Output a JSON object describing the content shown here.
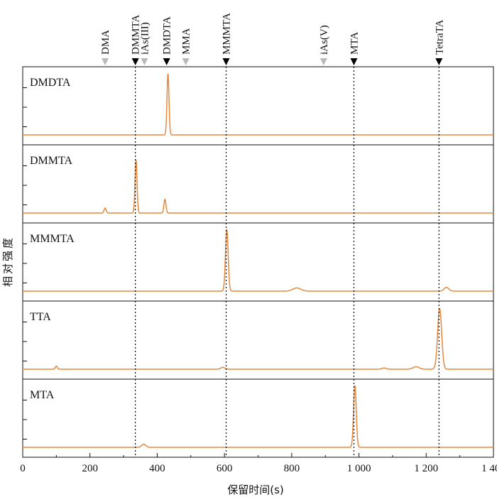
{
  "chart_data": {
    "type": "line",
    "xlabel": "保留时间(s)",
    "ylabel": "相对强度",
    "xlim": [
      0,
      1400
    ],
    "x_ticks": [
      {
        "value": 0,
        "label": "0"
      },
      {
        "value": 200,
        "label": "200"
      },
      {
        "value": 400,
        "label": "400"
      },
      {
        "value": 600,
        "label": "600"
      },
      {
        "value": 800,
        "label": "800"
      },
      {
        "value": 1000,
        "label": "1 000"
      },
      {
        "value": 1200,
        "label": "1 200"
      },
      {
        "value": 1400,
        "label": "1 400"
      }
    ],
    "grid": false,
    "line_color": "#E8883C",
    "markers": [
      {
        "label": "DMA",
        "x": 245,
        "style": "gray"
      },
      {
        "label": "DMMTA",
        "x": 335,
        "style": "black",
        "dotted": true
      },
      {
        "label": "iAs(III)",
        "x": 362,
        "style": "gray"
      },
      {
        "label": "DMDTA",
        "x": 428,
        "style": "black"
      },
      {
        "label": "MMA",
        "x": 485,
        "style": "gray"
      },
      {
        "label": "MMMTA",
        "x": 605,
        "style": "black",
        "dotted": true
      },
      {
        "label": "iAs(V)",
        "x": 895,
        "style": "gray"
      },
      {
        "label": "MTA",
        "x": 985,
        "style": "black",
        "dotted": true
      },
      {
        "label": "TetraTA",
        "x": 1238,
        "style": "black",
        "dotted": true
      }
    ],
    "series": [
      {
        "name": "DMDTA",
        "baseline": 0.02,
        "peaks": [
          {
            "x": 432,
            "height": 0.98,
            "width": 3
          }
        ]
      },
      {
        "name": "DMMTA",
        "baseline": 0.02,
        "peaks": [
          {
            "x": 245,
            "height": 0.08,
            "width": 3
          },
          {
            "x": 337,
            "height": 0.85,
            "width": 3
          },
          {
            "x": 423,
            "height": 0.22,
            "width": 3
          }
        ]
      },
      {
        "name": "MMMTA",
        "baseline": 0.02,
        "peaks": [
          {
            "x": 607,
            "height": 0.98,
            "width": 4
          },
          {
            "x": 815,
            "height": 0.05,
            "width": 12
          },
          {
            "x": 1260,
            "height": 0.06,
            "width": 7
          }
        ]
      },
      {
        "name": "TTA",
        "baseline": 0.02,
        "peaks": [
          {
            "x": 100,
            "height": 0.05,
            "width": 3
          },
          {
            "x": 595,
            "height": 0.03,
            "width": 6
          },
          {
            "x": 1075,
            "height": 0.02,
            "width": 6
          },
          {
            "x": 1170,
            "height": 0.04,
            "width": 9
          },
          {
            "x": 1240,
            "height": 0.97,
            "width": 6
          }
        ]
      },
      {
        "name": "MTA",
        "baseline": 0.02,
        "peaks": [
          {
            "x": 360,
            "height": 0.05,
            "width": 6
          },
          {
            "x": 988,
            "height": 0.98,
            "width": 4
          }
        ]
      }
    ]
  }
}
